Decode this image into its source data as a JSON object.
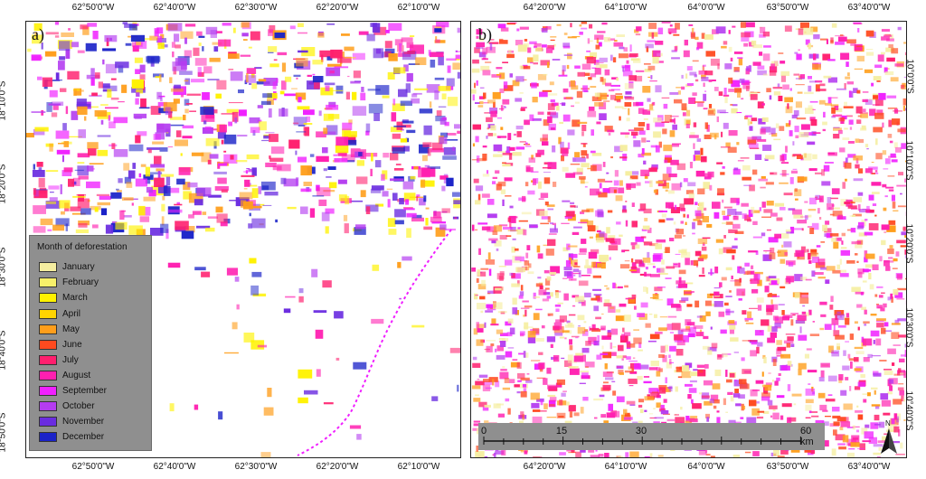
{
  "panels": {
    "a": {
      "letter": "a)",
      "top_ticks": [
        "62°50'0\"W",
        "62°40'0\"W",
        "62°30'0\"W",
        "62°20'0\"W",
        "62°10'0\"W"
      ],
      "bottom_ticks": [
        "62°50'0\"W",
        "62°40'0\"W",
        "62°30'0\"W",
        "62°20'0\"W",
        "62°10'0\"W"
      ],
      "left_ticks": [
        "18°10'0\"S",
        "18°20'0\"S",
        "18°30'0\"S",
        "18°40'0\"S",
        "18°50'0\"S"
      ]
    },
    "b": {
      "letter": "b)",
      "top_ticks": [
        "64°20'0\"W",
        "64°10'0\"W",
        "64°0'0\"W",
        "63°50'0\"W",
        "63°40'0\"W"
      ],
      "bottom_ticks": [
        "64°20'0\"W",
        "64°10'0\"W",
        "64°0'0\"W",
        "63°50'0\"W",
        "63°40'0\"W"
      ],
      "right_ticks": [
        "10°0'0\"S",
        "10°10'0\"S",
        "10°20'0\"S",
        "10°30'0\"S",
        "10°40'0\"S"
      ]
    }
  },
  "legend": {
    "title": "Month of deforestation",
    "items": [
      {
        "label": "January",
        "color": "#f5eea0"
      },
      {
        "label": "February",
        "color": "#f7f06a"
      },
      {
        "label": "March",
        "color": "#fff200"
      },
      {
        "label": "April",
        "color": "#ffd400"
      },
      {
        "label": "May",
        "color": "#ff9e1b"
      },
      {
        "label": "June",
        "color": "#ff4a1f"
      },
      {
        "label": "July",
        "color": "#ff1f6e"
      },
      {
        "label": "August",
        "color": "#ff1fb0"
      },
      {
        "label": "September",
        "color": "#f020ff"
      },
      {
        "label": "October",
        "color": "#b43cf0"
      },
      {
        "label": "November",
        "color": "#6a2ce0"
      },
      {
        "label": "December",
        "color": "#1a22c8"
      }
    ]
  },
  "scalebar": {
    "labels": [
      "0",
      "15",
      "30",
      "60 km"
    ]
  },
  "north_arrow": {
    "label": "N",
    "icon": "north-arrow-icon"
  }
}
